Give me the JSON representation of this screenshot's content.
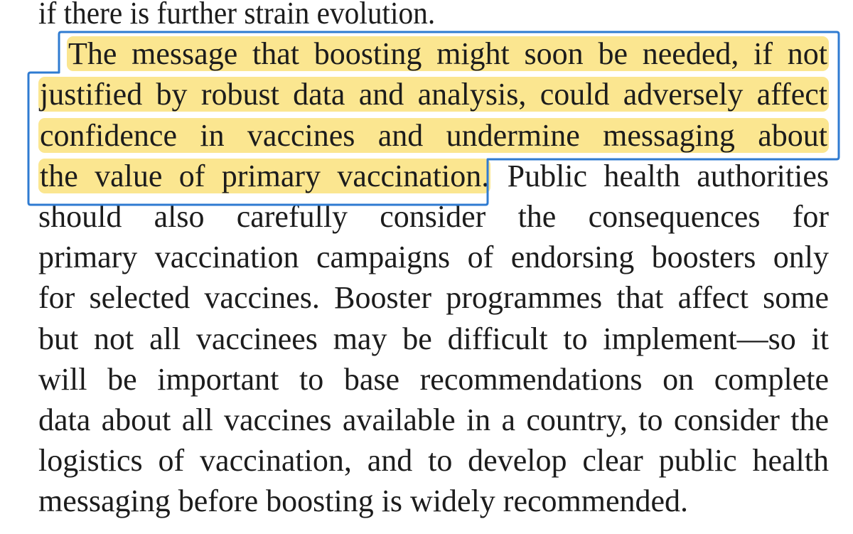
{
  "document": {
    "lines": [
      {
        "text": "if there is further strain evolution.",
        "highlighted": false
      },
      {
        "text": "The message that boosting might soon be needed, if not",
        "highlighted": true
      },
      {
        "text": "justified by robust data and analysis, could adversely affect",
        "highlighted": true
      },
      {
        "text": "confidence in vaccines and undermine messaging about",
        "highlighted": true
      },
      {
        "text": "the value of primary vaccination.",
        "highlighted": true,
        "rest": "Public health authorities"
      },
      {
        "text": "should also carefully consider the consequences for",
        "highlighted": false
      },
      {
        "text": "primary vaccination campaigns of endorsing boosters only",
        "highlighted": false
      },
      {
        "text": "for selected vaccines. Booster programmes that affect some",
        "highlighted": false
      },
      {
        "text": "but not all vaccinees may be difficult to implement—so it",
        "highlighted": false
      },
      {
        "text": "will be important to base recommendations on complete",
        "highlighted": false
      },
      {
        "text": "data about all vaccines available in a country, to consider the",
        "highlighted": false
      },
      {
        "text": "logistics of vaccination, and to develop clear public health",
        "highlighted": false
      },
      {
        "text": "messaging before boosting is widely recommended.",
        "highlighted": false
      }
    ]
  },
  "colors": {
    "highlight": "#fbe690",
    "selection_border": "#2f7bd1",
    "text": "#1c1c1c",
    "background": "#ffffff"
  }
}
